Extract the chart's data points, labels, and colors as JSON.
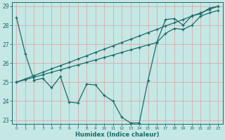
{
  "xlabel": "Humidex (Indice chaleur)",
  "bg_color": "#c5e8e5",
  "line_color": "#1a6b6b",
  "grid_color_v": "#dda0a0",
  "grid_color_h": "#dda0a0",
  "xlim": [
    -0.5,
    23.5
  ],
  "ylim": [
    22.8,
    29.2
  ],
  "xticks": [
    0,
    1,
    2,
    3,
    4,
    5,
    6,
    7,
    8,
    9,
    10,
    11,
    12,
    13,
    14,
    15,
    16,
    17,
    18,
    19,
    20,
    21,
    22,
    23
  ],
  "yticks": [
    23,
    24,
    25,
    26,
    27,
    28,
    29
  ],
  "zigzag_x": [
    0,
    1,
    2,
    3,
    4,
    5,
    6,
    7,
    8,
    9,
    10,
    11,
    12,
    13,
    14,
    15,
    16,
    17,
    18,
    19,
    20,
    21,
    22,
    23
  ],
  "zigzag_y": [
    28.4,
    26.5,
    25.1,
    25.2,
    24.7,
    25.3,
    23.95,
    23.9,
    24.9,
    24.85,
    24.3,
    24.0,
    23.15,
    22.85,
    22.85,
    25.1,
    27.1,
    28.3,
    28.35,
    28.0,
    28.5,
    28.6,
    28.9,
    29.0
  ],
  "diag1_x": [
    0,
    1,
    2,
    3,
    4,
    5,
    6,
    7,
    8,
    9,
    10,
    11,
    12,
    13,
    14,
    15,
    16,
    17,
    18,
    19,
    20,
    21,
    22,
    23
  ],
  "diag1_y": [
    25.0,
    25.17,
    25.35,
    25.52,
    25.7,
    25.87,
    26.04,
    26.22,
    26.39,
    26.57,
    26.74,
    26.91,
    27.09,
    27.26,
    27.43,
    27.61,
    27.78,
    27.96,
    28.13,
    28.3,
    28.48,
    28.65,
    28.83,
    29.0
  ],
  "diag2_x": [
    0,
    1,
    2,
    3,
    4,
    5,
    6,
    7,
    8,
    9,
    10,
    11,
    12,
    13,
    14,
    15,
    16,
    17,
    18,
    19,
    20,
    21,
    22,
    23
  ],
  "diag2_y": [
    25.0,
    25.13,
    25.26,
    25.39,
    25.52,
    25.65,
    25.78,
    25.91,
    26.04,
    26.17,
    26.3,
    26.43,
    26.57,
    26.7,
    26.83,
    26.96,
    27.09,
    27.57,
    27.83,
    27.78,
    28.0,
    28.48,
    28.65,
    28.78
  ]
}
